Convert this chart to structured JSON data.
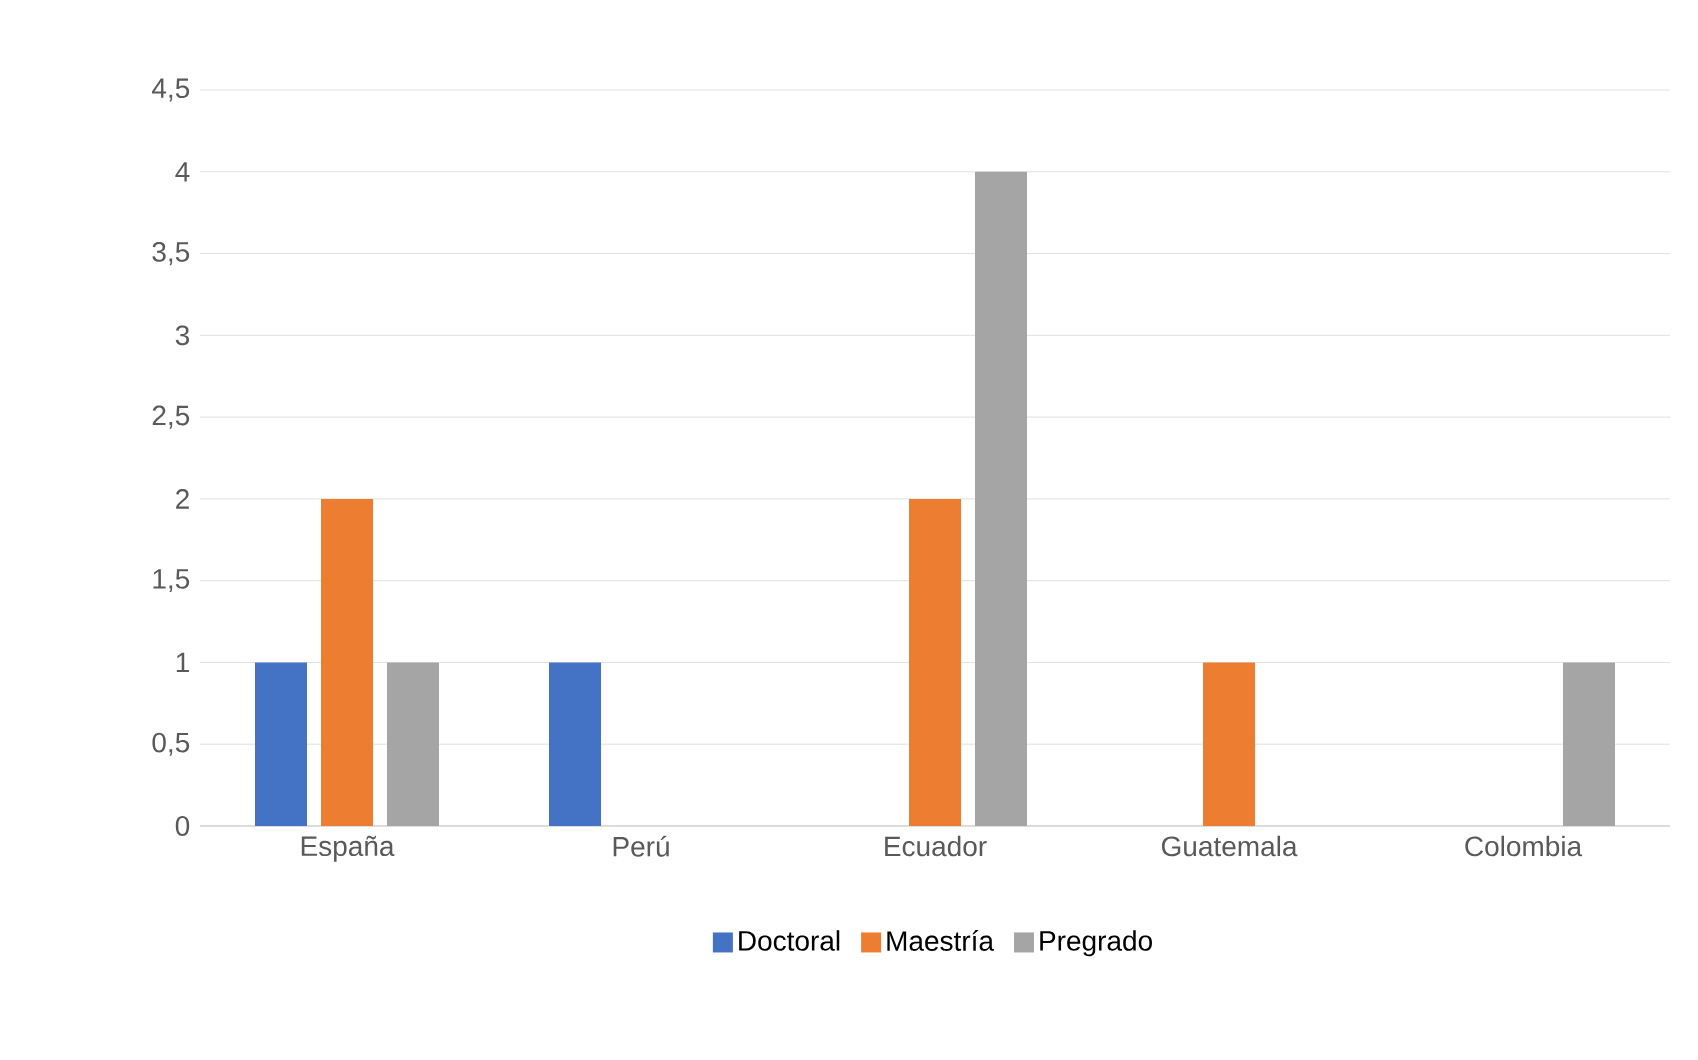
{
  "chart_data": {
    "type": "bar",
    "categories": [
      "España",
      "Perú",
      "Ecuador",
      "Guatemala",
      "Colombia"
    ],
    "series": [
      {
        "name": "Doctoral",
        "color": "#4472c4",
        "values": [
          1,
          1,
          0,
          0,
          0
        ]
      },
      {
        "name": "Maestría",
        "color": "#ed7d31",
        "values": [
          2,
          0,
          2,
          1,
          0
        ]
      },
      {
        "name": "Pregrado",
        "color": "#a5a5a5",
        "values": [
          1,
          0,
          4,
          0,
          1
        ]
      }
    ],
    "ylim": [
      0,
      4.5
    ],
    "yticks": [
      0,
      {
        "value": 0.5,
        "label": "0,5"
      },
      1,
      {
        "value": 1.5,
        "label": "1,5"
      },
      2,
      {
        "value": 2.5,
        "label": "2,5"
      },
      3,
      {
        "value": 3.5,
        "label": "3,5"
      },
      4,
      {
        "value": 4.5,
        "label": "4,5"
      }
    ],
    "grid": "y",
    "legend": "bottom"
  }
}
